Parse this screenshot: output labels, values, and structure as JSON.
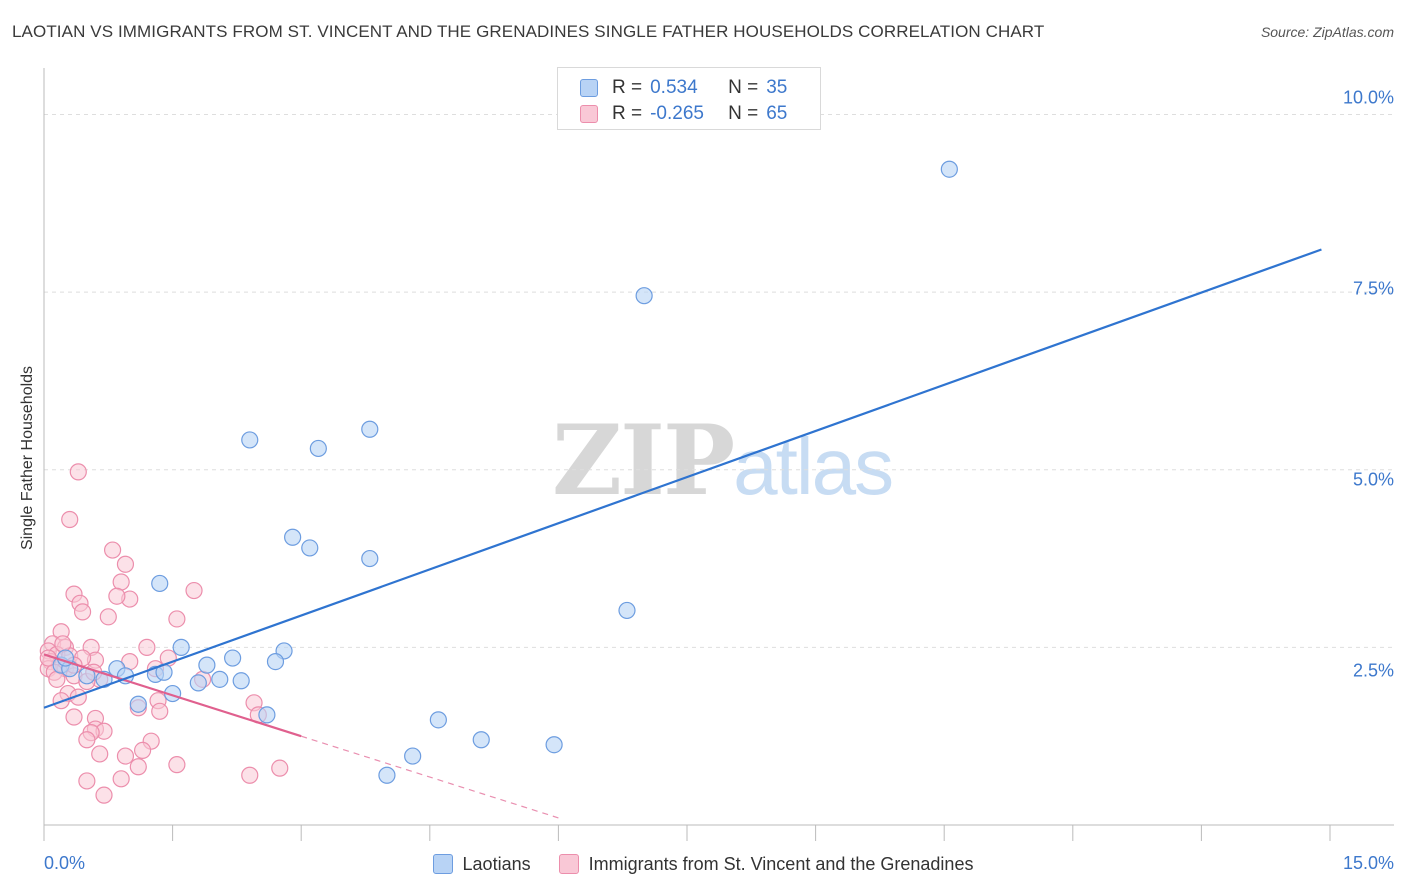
{
  "title": "LAOTIAN VS IMMIGRANTS FROM ST. VINCENT AND THE GRENADINES SINGLE FATHER HOUSEHOLDS CORRELATION CHART",
  "source": "Source: ZipAtlas.com",
  "watermark": {
    "zip": "ZIP",
    "atlas": "atlas"
  },
  "legend_top": {
    "rows": [
      {
        "r_label": "R =",
        "r_value": "0.534",
        "n_label": "N =",
        "n_value": "35"
      },
      {
        "r_label": "R =",
        "r_value": "-0.265",
        "n_label": "N =",
        "n_value": "65"
      }
    ]
  },
  "legend_bottom": {
    "items": [
      "Laotians",
      "Immigrants from St. Vincent and the Grenadines"
    ]
  },
  "x_tick_labels": {
    "left": "0.0%",
    "right": "15.0%"
  },
  "y_tick_labels": [
    "2.5%",
    "5.0%",
    "7.5%",
    "10.0%"
  ],
  "colors": {
    "blue_fill": "#b8d3f5",
    "blue_stroke": "#6d9de0",
    "blue_line": "#2f74d0",
    "pink_fill": "#f9c8d6",
    "pink_stroke": "#ec8eac",
    "pink_line": "#e0608e",
    "grid": "#dedede",
    "tick_text": "#3d78cc"
  },
  "chart_data": {
    "type": "scatter",
    "title": "LAOTIAN VS IMMIGRANTS FROM ST. VINCENT AND THE GRENADINES SINGLE FATHER HOUSEHOLDS CORRELATION CHART",
    "xlabel": "",
    "ylabel": "Single Father Households",
    "xlim": [
      0,
      15
    ],
    "ylim": [
      0,
      10.5
    ],
    "x_unit": "%",
    "y_unit": "%",
    "grid": true,
    "legend_placement": "bottom",
    "series": [
      {
        "name": "Laotians",
        "r": 0.534,
        "n": 35,
        "trend": {
          "x": [
            0,
            14.9
          ],
          "y": [
            1.65,
            8.1
          ]
        },
        "points": [
          [
            10.56,
            9.23
          ],
          [
            7.0,
            7.45
          ],
          [
            3.8,
            5.57
          ],
          [
            2.4,
            5.42
          ],
          [
            3.2,
            5.3
          ],
          [
            2.9,
            4.05
          ],
          [
            3.1,
            3.9
          ],
          [
            3.8,
            3.75
          ],
          [
            6.8,
            3.02
          ],
          [
            1.35,
            3.4
          ],
          [
            1.6,
            2.5
          ],
          [
            2.8,
            2.45
          ],
          [
            2.2,
            2.35
          ],
          [
            2.7,
            2.3
          ],
          [
            1.9,
            2.25
          ],
          [
            0.2,
            2.25
          ],
          [
            0.3,
            2.2
          ],
          [
            0.85,
            2.2
          ],
          [
            0.95,
            2.1
          ],
          [
            1.3,
            2.12
          ],
          [
            2.05,
            2.05
          ],
          [
            2.3,
            2.03
          ],
          [
            0.7,
            2.05
          ],
          [
            1.8,
            2.0
          ],
          [
            0.5,
            2.1
          ],
          [
            1.1,
            1.7
          ],
          [
            1.5,
            1.85
          ],
          [
            2.6,
            1.55
          ],
          [
            4.6,
            1.48
          ],
          [
            5.1,
            1.2
          ],
          [
            5.95,
            1.13
          ],
          [
            4.3,
            0.97
          ],
          [
            4.0,
            0.7
          ],
          [
            0.25,
            2.35
          ],
          [
            1.4,
            2.15
          ]
        ]
      },
      {
        "name": "Immigrants from St. Vincent and the Grenadines",
        "r": -0.265,
        "n": 65,
        "trend": {
          "x": [
            0,
            3.0
          ],
          "y": [
            2.4,
            1.25
          ]
        },
        "trend_dashed": {
          "x": [
            3.0,
            6.0
          ],
          "y": [
            1.25,
            0.1
          ]
        },
        "points": [
          [
            0.4,
            4.97
          ],
          [
            0.3,
            4.3
          ],
          [
            0.8,
            3.87
          ],
          [
            0.95,
            3.67
          ],
          [
            0.9,
            3.42
          ],
          [
            0.35,
            3.25
          ],
          [
            0.42,
            3.12
          ],
          [
            1.0,
            3.18
          ],
          [
            0.85,
            3.22
          ],
          [
            1.75,
            3.3
          ],
          [
            0.45,
            3.0
          ],
          [
            0.75,
            2.93
          ],
          [
            1.55,
            2.9
          ],
          [
            0.2,
            2.72
          ],
          [
            0.1,
            2.55
          ],
          [
            0.25,
            2.5
          ],
          [
            0.55,
            2.5
          ],
          [
            0.05,
            2.45
          ],
          [
            0.15,
            2.4
          ],
          [
            0.3,
            2.38
          ],
          [
            0.6,
            2.32
          ],
          [
            1.2,
            2.5
          ],
          [
            1.0,
            2.3
          ],
          [
            0.08,
            2.3
          ],
          [
            0.18,
            2.25
          ],
          [
            0.25,
            2.2
          ],
          [
            0.05,
            2.2
          ],
          [
            0.12,
            2.15
          ],
          [
            0.35,
            2.1
          ],
          [
            0.65,
            2.05
          ],
          [
            0.5,
            2.02
          ],
          [
            1.85,
            2.05
          ],
          [
            0.15,
            2.05
          ],
          [
            1.3,
            2.2
          ],
          [
            0.28,
            1.85
          ],
          [
            0.4,
            1.8
          ],
          [
            0.2,
            1.75
          ],
          [
            1.33,
            1.75
          ],
          [
            2.45,
            1.72
          ],
          [
            1.1,
            1.65
          ],
          [
            1.35,
            1.6
          ],
          [
            2.5,
            1.55
          ],
          [
            0.35,
            1.52
          ],
          [
            0.6,
            1.5
          ],
          [
            0.6,
            1.35
          ],
          [
            0.7,
            1.32
          ],
          [
            0.55,
            1.3
          ],
          [
            0.5,
            1.2
          ],
          [
            1.25,
            1.18
          ],
          [
            0.65,
            1.0
          ],
          [
            0.95,
            0.97
          ],
          [
            1.55,
            0.85
          ],
          [
            1.1,
            0.82
          ],
          [
            2.75,
            0.8
          ],
          [
            0.5,
            0.62
          ],
          [
            0.9,
            0.65
          ],
          [
            2.4,
            0.7
          ],
          [
            0.7,
            0.42
          ],
          [
            1.15,
            1.05
          ],
          [
            0.05,
            2.35
          ],
          [
            0.45,
            2.35
          ],
          [
            0.22,
            2.55
          ],
          [
            1.45,
            2.35
          ],
          [
            0.35,
            2.25
          ],
          [
            0.58,
            2.15
          ]
        ]
      }
    ]
  }
}
